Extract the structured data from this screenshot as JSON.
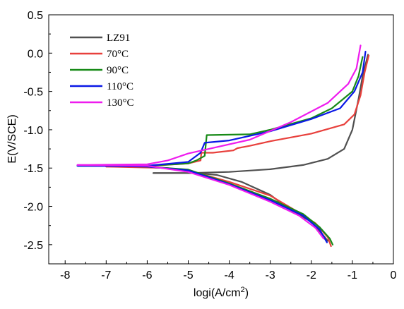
{
  "chart_data": {
    "type": "line",
    "xlabel": "logi(A/cm",
    "xlabel_sup": "2",
    "xlabel_close": ")",
    "ylabel": "E(V/SCE)",
    "xlim": [
      -8.4,
      0
    ],
    "ylim": [
      -2.75,
      0.5
    ],
    "x_ticks": [
      -8,
      -7,
      -6,
      -5,
      -4,
      -3,
      -2,
      -1,
      0
    ],
    "x_tick_labels": [
      "-8",
      "-7",
      "-6",
      "-5",
      "-4",
      "-3",
      "-2",
      "-1",
      "0"
    ],
    "y_ticks": [
      0.5,
      0.0,
      -0.5,
      -1.0,
      -1.5,
      -2.0,
      -2.5
    ],
    "y_tick_labels": [
      "0.5",
      "0.0",
      "-0.5",
      "-1.0",
      "-1.5",
      "-2.0",
      "-2.5"
    ],
    "grid": false,
    "legend_position": "top-left",
    "series": [
      {
        "name": "LZ91",
        "color": "#505050",
        "anodic": [
          [
            -5.85,
            -1.565
          ],
          [
            -5.0,
            -1.565
          ],
          [
            -4.0,
            -1.55
          ],
          [
            -3.0,
            -1.515
          ],
          [
            -2.2,
            -1.46
          ],
          [
            -1.6,
            -1.38
          ],
          [
            -1.2,
            -1.25
          ],
          [
            -1.0,
            -1.0
          ],
          [
            -0.85,
            -0.6
          ],
          [
            -0.75,
            -0.3
          ],
          [
            -0.62,
            -0.02
          ]
        ],
        "cathodic": [
          [
            -5.85,
            -1.565
          ],
          [
            -4.8,
            -1.565
          ],
          [
            -4.3,
            -1.59
          ],
          [
            -3.7,
            -1.68
          ],
          [
            -3.0,
            -1.85
          ],
          [
            -2.5,
            -2.05
          ],
          [
            -2.0,
            -2.2
          ],
          [
            -1.75,
            -2.35
          ],
          [
            -1.6,
            -2.45
          ]
        ]
      },
      {
        "name": "70°C",
        "color": "#e8403c",
        "anodic": [
          [
            -7.0,
            -1.48
          ],
          [
            -6.0,
            -1.475
          ],
          [
            -5.0,
            -1.44
          ],
          [
            -4.7,
            -1.4
          ],
          [
            -4.68,
            -1.3
          ],
          [
            -4.4,
            -1.3
          ],
          [
            -3.9,
            -1.27
          ],
          [
            -3.8,
            -1.24
          ],
          [
            -3.5,
            -1.21
          ],
          [
            -3.0,
            -1.15
          ],
          [
            -2.0,
            -1.05
          ],
          [
            -1.2,
            -0.93
          ],
          [
            -0.95,
            -0.8
          ],
          [
            -0.8,
            -0.55
          ],
          [
            -0.7,
            -0.25
          ],
          [
            -0.6,
            -0.03
          ]
        ],
        "cathodic": [
          [
            -7.0,
            -1.48
          ],
          [
            -5.5,
            -1.5
          ],
          [
            -4.8,
            -1.56
          ],
          [
            -4.0,
            -1.68
          ],
          [
            -3.0,
            -1.86
          ],
          [
            -2.4,
            -2.05
          ],
          [
            -1.9,
            -2.22
          ],
          [
            -1.6,
            -2.4
          ],
          [
            -1.52,
            -2.52
          ]
        ]
      },
      {
        "name": "90°C",
        "color": "#178a17",
        "anodic": [
          [
            -7.7,
            -1.47
          ],
          [
            -6.0,
            -1.47
          ],
          [
            -5.0,
            -1.44
          ],
          [
            -4.8,
            -1.4
          ],
          [
            -4.6,
            -1.34
          ],
          [
            -4.55,
            -1.07
          ],
          [
            -3.5,
            -1.06
          ],
          [
            -3.0,
            -1.0
          ],
          [
            -2.0,
            -0.85
          ],
          [
            -1.5,
            -0.72
          ],
          [
            -1.0,
            -0.5
          ],
          [
            -0.85,
            -0.3
          ],
          [
            -0.75,
            -0.05
          ]
        ],
        "cathodic": [
          [
            -7.7,
            -1.47
          ],
          [
            -6.0,
            -1.48
          ],
          [
            -5.0,
            -1.52
          ],
          [
            -4.0,
            -1.7
          ],
          [
            -3.0,
            -1.9
          ],
          [
            -2.2,
            -2.1
          ],
          [
            -1.8,
            -2.27
          ],
          [
            -1.55,
            -2.42
          ],
          [
            -1.48,
            -2.5
          ]
        ]
      },
      {
        "name": "110°C",
        "color": "#0a18e6",
        "anodic": [
          [
            -7.7,
            -1.47
          ],
          [
            -6.0,
            -1.47
          ],
          [
            -5.0,
            -1.42
          ],
          [
            -4.7,
            -1.3
          ],
          [
            -4.6,
            -1.17
          ],
          [
            -4.0,
            -1.14
          ],
          [
            -3.0,
            -1.02
          ],
          [
            -2.0,
            -0.86
          ],
          [
            -1.3,
            -0.72
          ],
          [
            -0.95,
            -0.5
          ],
          [
            -0.75,
            -0.25
          ],
          [
            -0.68,
            0.02
          ]
        ],
        "cathodic": [
          [
            -7.7,
            -1.47
          ],
          [
            -6.0,
            -1.48
          ],
          [
            -5.0,
            -1.53
          ],
          [
            -4.0,
            -1.71
          ],
          [
            -3.0,
            -1.92
          ],
          [
            -2.2,
            -2.12
          ],
          [
            -1.8,
            -2.3
          ],
          [
            -1.62,
            -2.47
          ]
        ]
      },
      {
        "name": "130°C",
        "color": "#ee1cee",
        "anodic": [
          [
            -7.7,
            -1.46
          ],
          [
            -6.0,
            -1.45
          ],
          [
            -5.5,
            -1.4
          ],
          [
            -5.0,
            -1.31
          ],
          [
            -4.5,
            -1.25
          ],
          [
            -3.5,
            -1.13
          ],
          [
            -2.5,
            -0.9
          ],
          [
            -1.6,
            -0.65
          ],
          [
            -1.1,
            -0.4
          ],
          [
            -0.9,
            -0.2
          ],
          [
            -0.8,
            0.1
          ]
        ],
        "cathodic": [
          [
            -7.7,
            -1.46
          ],
          [
            -6.0,
            -1.47
          ],
          [
            -5.0,
            -1.55
          ],
          [
            -4.0,
            -1.72
          ],
          [
            -3.0,
            -1.94
          ],
          [
            -2.3,
            -2.12
          ],
          [
            -1.9,
            -2.28
          ],
          [
            -1.7,
            -2.42
          ]
        ]
      }
    ]
  }
}
